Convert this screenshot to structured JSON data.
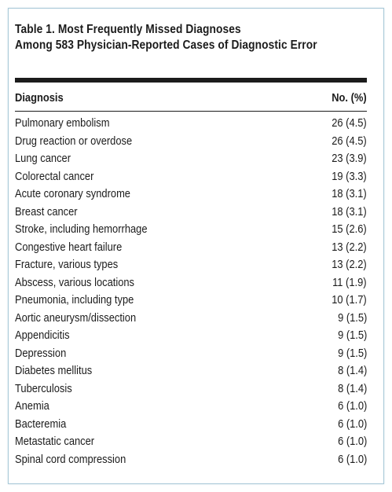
{
  "table": {
    "title_line1": "Table 1. Most Frequently Missed Diagnoses",
    "title_line2": "Among 583 Physician-Reported Cases of Diagnostic Error",
    "columns": [
      "Diagnosis",
      "No. (%)"
    ],
    "rows": [
      {
        "diagnosis": "Pulmonary embolism",
        "count": "26 (4.5)"
      },
      {
        "diagnosis": "Drug reaction or overdose",
        "count": "26 (4.5)"
      },
      {
        "diagnosis": "Lung cancer",
        "count": "23 (3.9)"
      },
      {
        "diagnosis": "Colorectal cancer",
        "count": "19 (3.3)"
      },
      {
        "diagnosis": "Acute coronary syndrome",
        "count": "18 (3.1)"
      },
      {
        "diagnosis": "Breast cancer",
        "count": "18 (3.1)"
      },
      {
        "diagnosis": "Stroke, including hemorrhage",
        "count": "15 (2.6)"
      },
      {
        "diagnosis": "Congestive heart failure",
        "count": "13 (2.2)"
      },
      {
        "diagnosis": "Fracture, various types",
        "count": "13 (2.2)"
      },
      {
        "diagnosis": "Abscess, various locations",
        "count": "11 (1.9)"
      },
      {
        "diagnosis": "Pneumonia, including type",
        "count": "10 (1.7)"
      },
      {
        "diagnosis": "Aortic aneurysm/dissection",
        "count": "9 (1.5)"
      },
      {
        "diagnosis": "Appendicitis",
        "count": "9 (1.5)"
      },
      {
        "diagnosis": "Depression",
        "count": "9 (1.5)"
      },
      {
        "diagnosis": "Diabetes mellitus",
        "count": "8 (1.4)"
      },
      {
        "diagnosis": "Tuberculosis",
        "count": "8 (1.4)"
      },
      {
        "diagnosis": "Anemia",
        "count": "6 (1.0)"
      },
      {
        "diagnosis": "Bacteremia",
        "count": "6 (1.0)"
      },
      {
        "diagnosis": "Metastatic cancer",
        "count": "6 (1.0)"
      },
      {
        "diagnosis": "Spinal cord compression",
        "count": "6 (1.0)"
      }
    ]
  },
  "colors": {
    "text": "#1c1c1c",
    "frame_border": "#a9c9d8"
  }
}
